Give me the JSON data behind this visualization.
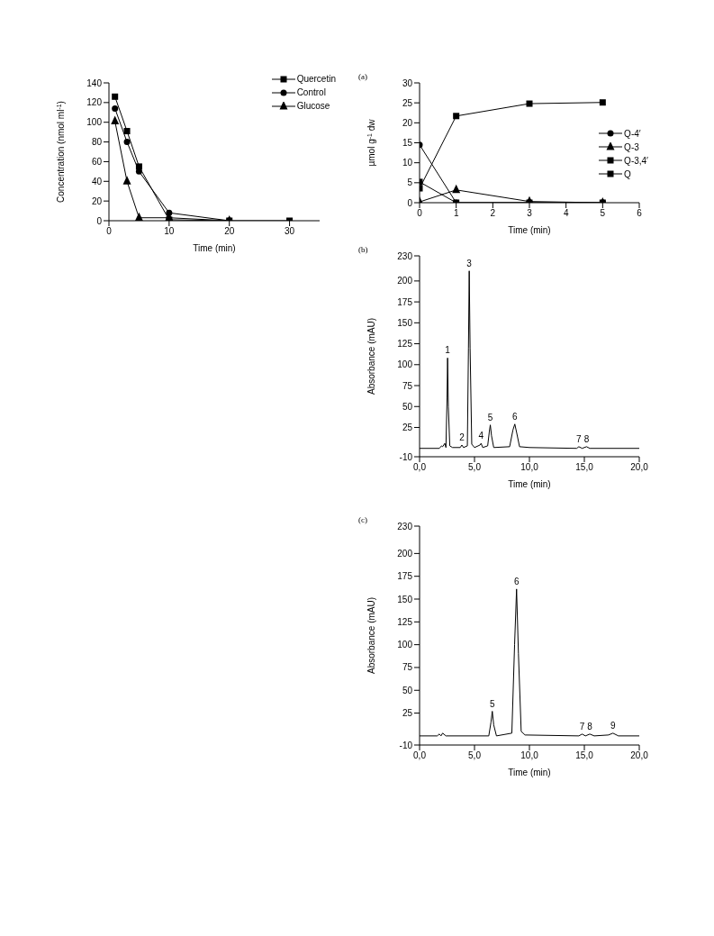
{
  "chart_data": [
    {
      "type": "line",
      "xlabel": "Time (min)",
      "ylabel": "Concentration (nmol ml$^{-1}$)",
      "xlim": [
        0,
        35
      ],
      "xticks": [
        0,
        10,
        20,
        30
      ],
      "ylim": [
        0,
        140
      ],
      "yticks": [
        0,
        20,
        40,
        60,
        80,
        100,
        120,
        140
      ],
      "grid": false,
      "legend": "top right",
      "line_style": "solid",
      "series": [
        {
          "name": "Quercetin",
          "color": "#000000",
          "marker": "square",
          "x": [
            1,
            3,
            5,
            10,
            20,
            30
          ],
          "values": [
            126,
            91,
            55,
            1,
            0,
            0
          ]
        },
        {
          "name": "Control",
          "color": "#000000",
          "marker": "circle",
          "x": [
            1,
            3,
            5,
            10,
            20
          ],
          "values": [
            114,
            80,
            50,
            8,
            0
          ]
        },
        {
          "name": "Glucose",
          "color": "#000000",
          "marker": "triangle",
          "x": [
            1,
            3,
            5,
            10,
            20
          ],
          "values": [
            101,
            40,
            3,
            3,
            0
          ]
        }
      ]
    },
    {
      "type": "line",
      "title": "(a)",
      "xlabel": "Time (min)",
      "ylabel": "µmol g$^{-1}$ dw",
      "xlim": [
        0,
        6
      ],
      "xticks": [
        0,
        1,
        2,
        3,
        4,
        5,
        6
      ],
      "ylim": [
        0,
        30
      ],
      "yticks": [
        0,
        5,
        10,
        15,
        20,
        25,
        30
      ],
      "grid": false,
      "legend": "right",
      "line_style": "solid",
      "series": [
        {
          "name": "Q-4′",
          "color": "#000000",
          "marker": "circle",
          "x": [
            0,
            1,
            3,
            5
          ],
          "values": [
            14.5,
            0,
            0,
            0
          ]
        },
        {
          "name": "Q-3",
          "color": "#000000",
          "marker": "triangle",
          "x": [
            0,
            1,
            3,
            5
          ],
          "values": [
            0.2,
            3.2,
            0.3,
            0
          ]
        },
        {
          "name": "Q-3,4′",
          "color": "#000000",
          "marker": "square",
          "x": [
            0,
            1,
            3,
            5
          ],
          "values": [
            5.2,
            0,
            0,
            0
          ]
        },
        {
          "name": "Q",
          "color": "#000000",
          "marker": "square",
          "x": [
            0,
            1,
            3,
            5
          ],
          "values": [
            3.6,
            21.7,
            24.8,
            25.1
          ]
        }
      ]
    },
    {
      "type": "line",
      "title": "(b)",
      "xlabel": "Time (min)",
      "ylabel": "Absorbance (mAU)",
      "xlim": [
        0,
        20
      ],
      "xticks": [
        {
          "value": 0,
          "label": "0,0"
        },
        {
          "value": 5,
          "label": "5,0"
        },
        {
          "value": 10,
          "label": "10,0"
        },
        {
          "value": 15,
          "label": "15,0"
        },
        {
          "value": 20,
          "label": "20,0"
        }
      ],
      "ylim": [
        -10,
        230
      ],
      "yticks": [
        -10,
        25,
        50,
        75,
        100,
        125,
        150,
        175,
        200,
        230
      ],
      "grid": false,
      "marker": "none",
      "line_style": "solid",
      "series": [
        {
          "color": "#000000",
          "x": [
            0,
            1.8,
            2.0,
            2.1,
            2.3,
            2.4,
            2.5,
            2.55,
            2.62,
            2.75,
            3.0,
            3.7,
            3.85,
            4.0,
            4.35,
            4.45,
            4.52,
            4.6,
            4.75,
            5.0,
            5.5,
            5.6,
            5.75,
            6.2,
            6.35,
            6.44,
            6.55,
            6.75,
            8.2,
            8.5,
            8.67,
            8.85,
            9.1,
            10,
            14.3,
            14.5,
            14.8,
            15.2,
            15.5,
            20
          ],
          "values": [
            0,
            0,
            3,
            2,
            6,
            1,
            60,
            108,
            50,
            3,
            1,
            1,
            4,
            1,
            3,
            120,
            212,
            120,
            5,
            1,
            4,
            6,
            1,
            3,
            20,
            28,
            15,
            1,
            2,
            22,
            29,
            18,
            2,
            1,
            0,
            2,
            0,
            2,
            0,
            0
          ]
        }
      ],
      "annotations": [
        {
          "text": "1",
          "x": 2.55,
          "y": 108
        },
        {
          "text": "2",
          "x": 3.85,
          "y": 4
        },
        {
          "text": "3",
          "x": 4.52,
          "y": 212
        },
        {
          "text": "4",
          "x": 5.6,
          "y": 6
        },
        {
          "text": "5",
          "x": 6.44,
          "y": 28
        },
        {
          "text": "6",
          "x": 8.67,
          "y": 29
        },
        {
          "text": "7",
          "x": 14.5,
          "y": 2
        },
        {
          "text": "8",
          "x": 15.2,
          "y": 2
        }
      ]
    },
    {
      "type": "line",
      "title": "(c)",
      "xlabel": "Time (min)",
      "ylabel": "Absorbance (mAU)",
      "xlim": [
        0,
        20
      ],
      "xticks": [
        {
          "value": 0,
          "label": "0,0"
        },
        {
          "value": 5,
          "label": "5,0"
        },
        {
          "value": 10,
          "label": "10,0"
        },
        {
          "value": 15,
          "label": "15,0"
        },
        {
          "value": 20,
          "label": "20,0"
        }
      ],
      "ylim": [
        -10,
        230
      ],
      "yticks": [
        -10,
        25,
        50,
        75,
        100,
        125,
        150,
        175,
        200,
        230
      ],
      "grid": false,
      "marker": "none",
      "line_style": "solid",
      "series": [
        {
          "color": "#000000",
          "x": [
            0,
            1.6,
            1.8,
            1.95,
            2.1,
            2.4,
            6.3,
            6.5,
            6.62,
            6.75,
            7.0,
            8.4,
            8.65,
            8.83,
            9.0,
            9.25,
            9.6,
            14.5,
            14.8,
            15.1,
            15.5,
            15.9,
            17.2,
            17.6,
            18.1,
            20
          ],
          "values": [
            0,
            0,
            2,
            0,
            3,
            0,
            0,
            15,
            27,
            12,
            0,
            3,
            100,
            161,
            90,
            5,
            1,
            0,
            2,
            0,
            2,
            0,
            1,
            3,
            0,
            0
          ]
        }
      ],
      "annotations": [
        {
          "text": "5",
          "x": 6.62,
          "y": 27
        },
        {
          "text": "6",
          "x": 8.83,
          "y": 161
        },
        {
          "text": "7",
          "x": 14.8,
          "y": 2
        },
        {
          "text": "8",
          "x": 15.5,
          "y": 2
        },
        {
          "text": "9",
          "x": 17.6,
          "y": 3
        }
      ]
    }
  ]
}
